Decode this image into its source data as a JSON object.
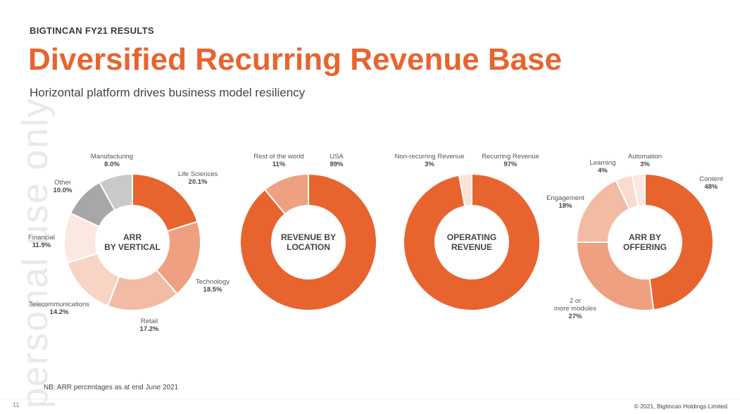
{
  "header": {
    "eyebrow": "BIGTINCAN FY21 RESULTS",
    "title": "Diversified Recurring Revenue Base",
    "subtitle": "Horizontal platform drives business model resiliency"
  },
  "watermark": "personal use only",
  "footer": {
    "note": "NB: ARR percentages as at end June 2021",
    "page_number": "11",
    "copyright": "© 2021, Bigtincan Holdings Limited"
  },
  "chart_data": [
    {
      "type": "pie",
      "center_label": [
        "ARR",
        "BY VERTICAL"
      ],
      "categories": [
        "Life Sciences",
        "Technology",
        "Retail",
        "Telecommunications",
        "Financial",
        "Other",
        "Manufacturing"
      ],
      "values": [
        20.1,
        18.5,
        17.2,
        14.2,
        11.9,
        10.0,
        8.0
      ],
      "value_labels": [
        "20.1%",
        "18.5%",
        "17.2%",
        "14.2%",
        "11.9%",
        "10.0%",
        "8.0%"
      ],
      "colors": [
        "#e8642f",
        "#eea080",
        "#f2bba3",
        "#f7d4c4",
        "#fbe9e1",
        "#a7a7a7",
        "#c9c9c9"
      ]
    },
    {
      "type": "pie",
      "center_label": [
        "REVENUE BY",
        "LOCATION"
      ],
      "categories": [
        "USA",
        "Rest of the world"
      ],
      "values": [
        89,
        11
      ],
      "value_labels": [
        "89%",
        "11%"
      ],
      "colors": [
        "#e8642f",
        "#eea080"
      ]
    },
    {
      "type": "pie",
      "center_label": [
        "OPERATING",
        "REVENUE"
      ],
      "categories": [
        "Recurring Revenue",
        "Non-recurring Revenue"
      ],
      "values": [
        97,
        3
      ],
      "value_labels": [
        "97%",
        "3%"
      ],
      "colors": [
        "#e8642f",
        "#fbe3d8"
      ]
    },
    {
      "type": "pie",
      "center_label": [
        "ARR BY",
        "OFFERING"
      ],
      "categories": [
        "Content",
        "2 or more modules",
        "Engagement",
        "Learning",
        "Automation"
      ],
      "values": [
        48,
        27,
        18,
        4,
        3
      ],
      "value_labels": [
        "48%",
        "27%",
        "18%",
        "4%",
        "3%"
      ],
      "colors": [
        "#e8642f",
        "#eea080",
        "#f2bba3",
        "#f9dccf",
        "#fbe9e1"
      ]
    }
  ]
}
